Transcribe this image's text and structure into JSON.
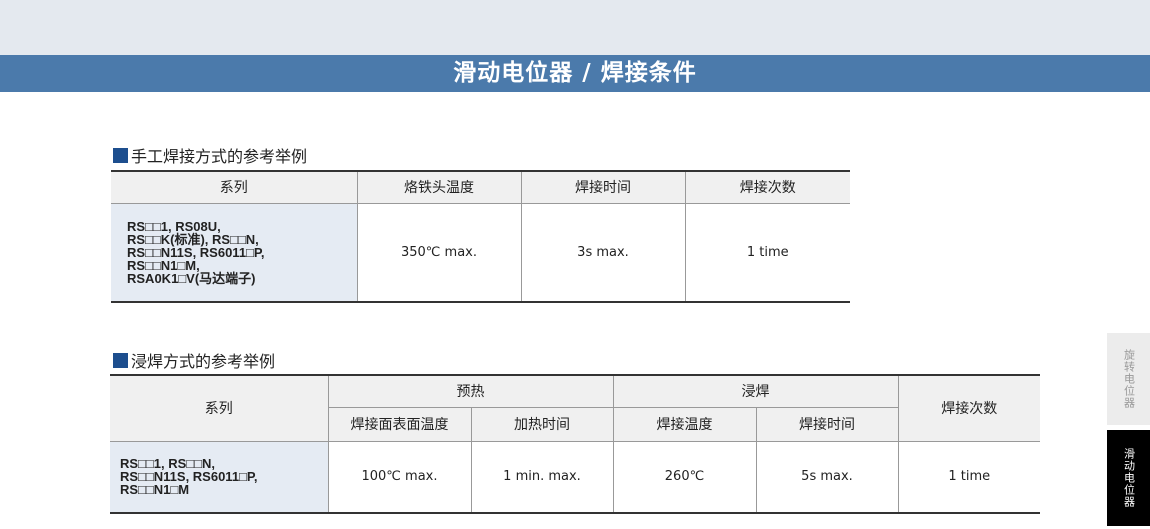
{
  "header": {
    "title": "滑动电位器 / 焊接条件"
  },
  "manual": {
    "title": "手工焊接方式的参考举例",
    "headers": [
      "系列",
      "烙铁头温度",
      "焊接时间",
      "焊接次数"
    ],
    "series_lines": [
      "RS□□1, RS08U,",
      "RS□□K(标准), RS□□N,",
      "RS□□N11S, RS6011□P,",
      "RS□□N1□M,",
      "RSA0K1□V(马达端子)"
    ],
    "values": [
      "350℃ max.",
      "3s max.",
      "1 time"
    ]
  },
  "dip": {
    "title": "浸焊方式的参考举例",
    "h_series": "系列",
    "h_preheat": "预热",
    "h_dip": "浸焊",
    "h_count": "焊接次数",
    "sub": [
      "焊接面表面温度",
      "加热时间",
      "焊接温度",
      "焊接时间"
    ],
    "series_lines": [
      "RS□□1,  RS□□N,",
      "RS□□N11S, RS6011□P,",
      "RS□□N1□M"
    ],
    "values": [
      "100℃ max.",
      "1 min. max.",
      "260℃",
      "5s max.",
      "1 time"
    ]
  },
  "side_tabs": [
    {
      "label": "旋转电位器",
      "active": false
    },
    {
      "label": "滑动电位器",
      "active": true
    }
  ],
  "colors": {
    "banner": "#4b7aab",
    "accent": "#1d4e8e",
    "series_bg": "#e5ebf3"
  }
}
